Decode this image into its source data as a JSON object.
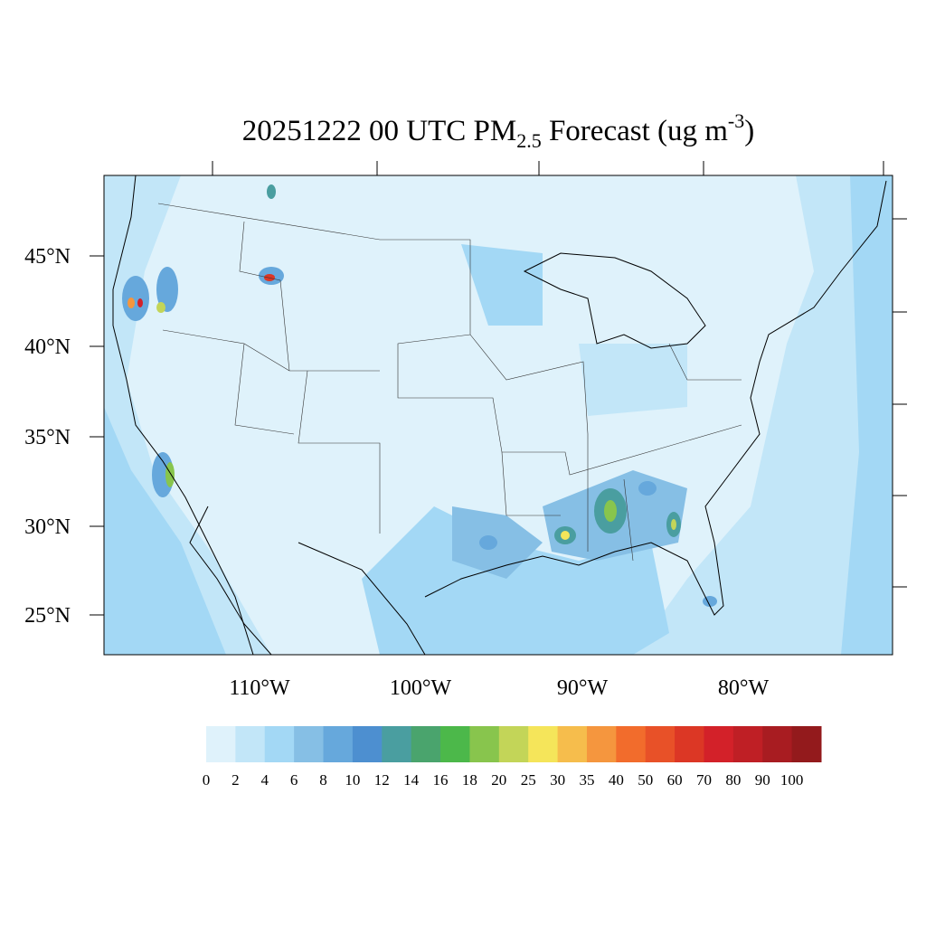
{
  "title": {
    "prefix": "20251222 00 UTC PM",
    "subscript": "2.5",
    "middle": " Forecast (ug m",
    "superscript": "-3",
    "suffix": ")"
  },
  "lat_labels": [
    "45°N",
    "40°N",
    "35°N",
    "30°N",
    "25°N"
  ],
  "lon_labels": [
    "110°W",
    "100°W",
    "90°W",
    "80°W"
  ],
  "colorbar": {
    "levels": [
      0,
      2,
      4,
      6,
      8,
      10,
      12,
      14,
      16,
      18,
      20,
      25,
      30,
      35,
      40,
      50,
      60,
      70,
      80,
      90,
      100
    ],
    "colors": [
      "#dff2fb",
      "#c2e6f8",
      "#a3d8f5",
      "#86bfe5",
      "#66a8dc",
      "#4d8fd0",
      "#4a9ea0",
      "#4aa46d",
      "#4cb84a",
      "#88c54d",
      "#c3d558",
      "#f5e55a",
      "#f6bd4c",
      "#f5963e",
      "#f26c2c",
      "#e85128",
      "#dc3725",
      "#d32129",
      "#bf1f25",
      "#a81c21",
      "#931a1c"
    ]
  }
}
